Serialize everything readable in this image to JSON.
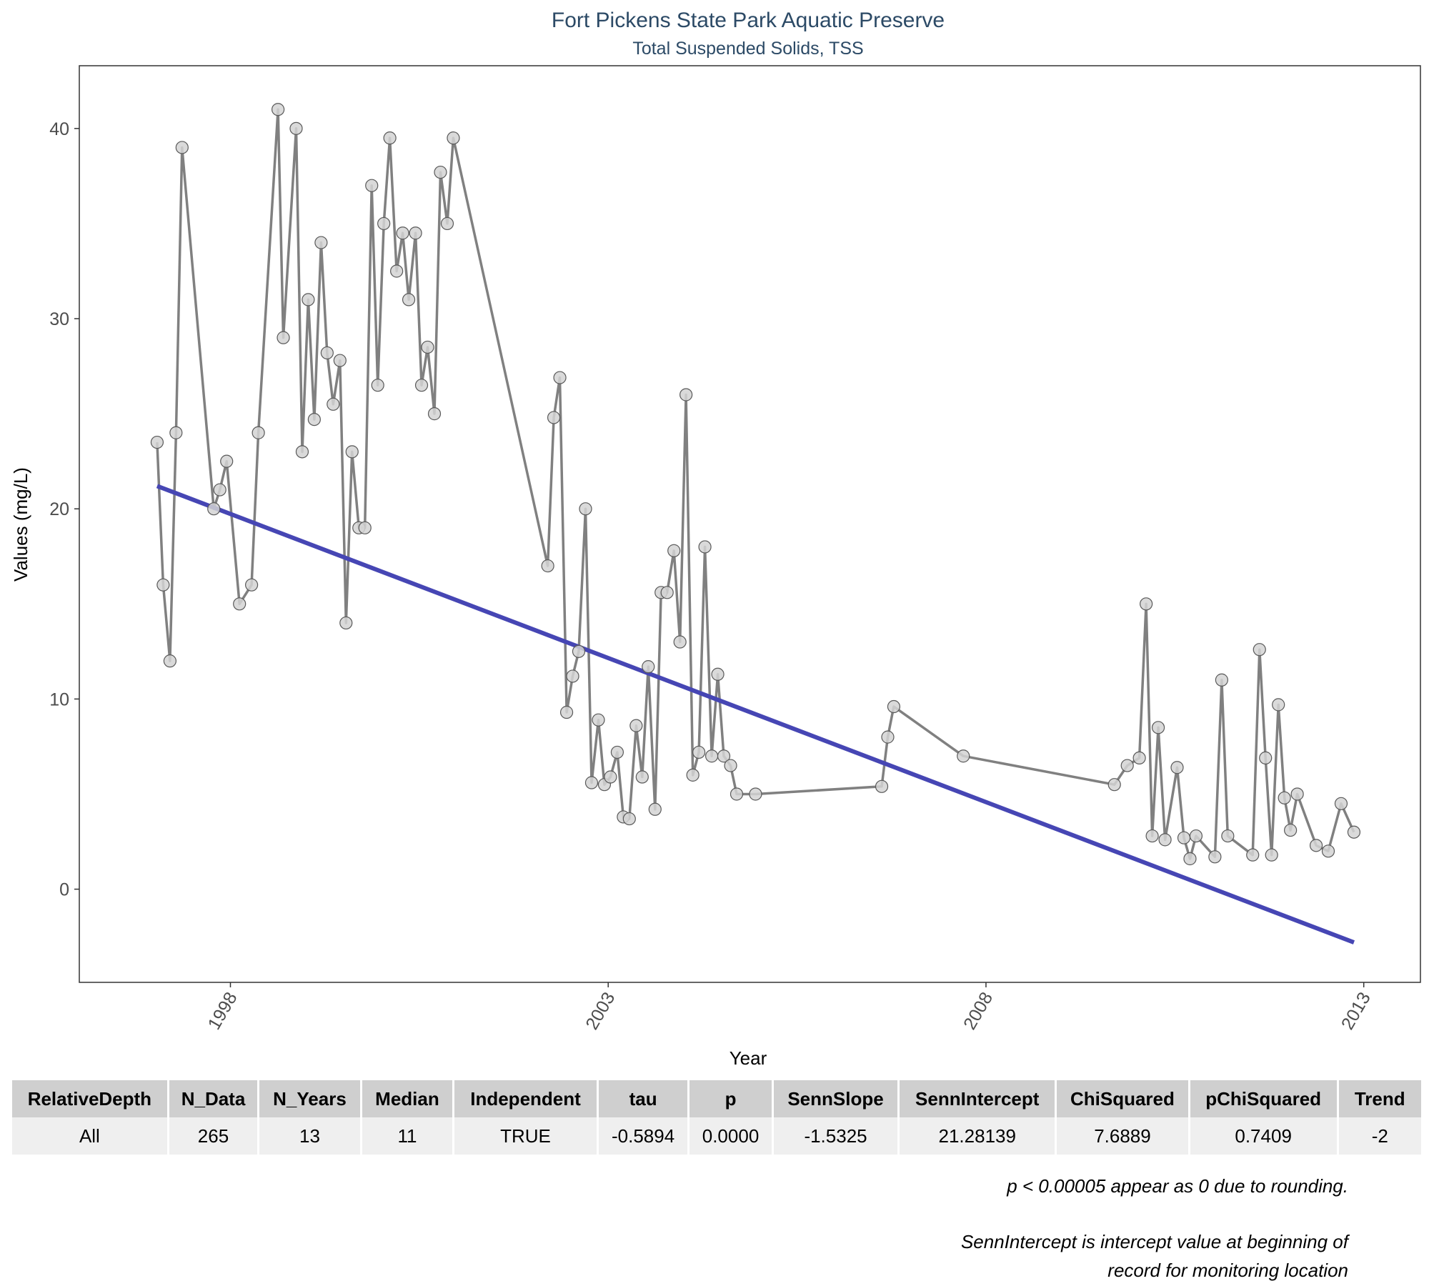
{
  "colors": {
    "title": "#2c4a66",
    "series_line": "#808080",
    "point_fill": "#d3d3d3",
    "point_stroke": "#595959",
    "trend_line": "#4646b4",
    "table_header_bg": "#cfcfcf",
    "table_row_bg": "#efefef"
  },
  "chart_data": {
    "type": "line",
    "title": "Fort Pickens State Park Aquatic Preserve",
    "subtitle": "Total Suspended Solids, TSS",
    "xlabel": "Year",
    "ylabel": "Values (mg/L)",
    "xlim": [
      1996.0,
      2013.75
    ],
    "ylim": [
      -4.9,
      43.3
    ],
    "x_ticks": [
      1998,
      2003,
      2008,
      2013
    ],
    "y_ticks": [
      0,
      10,
      20,
      30,
      40
    ],
    "grid": false,
    "x_tick_rotation": -60,
    "series": [
      {
        "style": "line+markers",
        "points": [
          [
            1997.03,
            23.5
          ],
          [
            1997.11,
            16.0
          ],
          [
            1997.2,
            12.0
          ],
          [
            1997.28,
            24.0
          ],
          [
            1997.36,
            39.0
          ],
          [
            1997.78,
            20.0
          ],
          [
            1997.86,
            21.0
          ],
          [
            1997.95,
            22.5
          ],
          [
            1998.12,
            15.0
          ],
          [
            1998.28,
            16.0
          ],
          [
            1998.37,
            24.0
          ],
          [
            1998.63,
            41.0
          ],
          [
            1998.7,
            29.0
          ],
          [
            1998.87,
            40.0
          ],
          [
            1998.95,
            23.0
          ],
          [
            1999.03,
            31.0
          ],
          [
            1999.11,
            24.7
          ],
          [
            1999.2,
            34.0
          ],
          [
            1999.28,
            28.2
          ],
          [
            1999.36,
            25.5
          ],
          [
            1999.45,
            27.8
          ],
          [
            1999.53,
            14.0
          ],
          [
            1999.61,
            23.0
          ],
          [
            1999.7,
            19.0
          ],
          [
            1999.78,
            19.0
          ],
          [
            1999.87,
            37.0
          ],
          [
            1999.95,
            26.5
          ],
          [
            2000.03,
            35.0
          ],
          [
            2000.11,
            39.5
          ],
          [
            2000.2,
            32.5
          ],
          [
            2000.28,
            34.5
          ],
          [
            2000.36,
            31.0
          ],
          [
            2000.45,
            34.5
          ],
          [
            2000.53,
            26.5
          ],
          [
            2000.61,
            28.5
          ],
          [
            2000.7,
            25.0
          ],
          [
            2000.78,
            37.7
          ],
          [
            2000.87,
            35.0
          ],
          [
            2000.95,
            39.5
          ],
          [
            2002.2,
            17.0
          ],
          [
            2002.28,
            24.8
          ],
          [
            2002.36,
            26.9
          ],
          [
            2002.45,
            9.3
          ],
          [
            2002.53,
            11.2
          ],
          [
            2002.61,
            12.5
          ],
          [
            2002.7,
            20.0
          ],
          [
            2002.78,
            5.6
          ],
          [
            2002.87,
            8.9
          ],
          [
            2002.95,
            5.5
          ],
          [
            2003.03,
            5.9
          ],
          [
            2003.12,
            7.2
          ],
          [
            2003.2,
            3.8
          ],
          [
            2003.28,
            3.7
          ],
          [
            2003.37,
            8.6
          ],
          [
            2003.45,
            5.9
          ],
          [
            2003.53,
            11.7
          ],
          [
            2003.62,
            4.2
          ],
          [
            2003.7,
            15.6
          ],
          [
            2003.78,
            15.6
          ],
          [
            2003.87,
            17.8
          ],
          [
            2003.95,
            13.0
          ],
          [
            2004.03,
            26.0
          ],
          [
            2004.12,
            6.0
          ],
          [
            2004.2,
            7.2
          ],
          [
            2004.28,
            18.0
          ],
          [
            2004.37,
            7.0
          ],
          [
            2004.45,
            11.3
          ],
          [
            2004.53,
            7.0
          ],
          [
            2004.62,
            6.5
          ],
          [
            2004.7,
            5.0
          ],
          [
            2004.95,
            5.0
          ],
          [
            2006.62,
            5.4
          ],
          [
            2006.7,
            8.0
          ],
          [
            2006.78,
            9.6
          ],
          [
            2007.7,
            7.0
          ],
          [
            2009.7,
            5.5
          ],
          [
            2009.87,
            6.5
          ],
          [
            2010.03,
            6.9
          ],
          [
            2010.12,
            15.0
          ],
          [
            2010.2,
            2.8
          ],
          [
            2010.28,
            8.5
          ],
          [
            2010.37,
            2.6
          ],
          [
            2010.53,
            6.4
          ],
          [
            2010.62,
            2.7
          ],
          [
            2010.7,
            1.6
          ],
          [
            2010.78,
            2.8
          ],
          [
            2011.03,
            1.7
          ],
          [
            2011.12,
            11.0
          ],
          [
            2011.2,
            2.8
          ],
          [
            2011.53,
            1.8
          ],
          [
            2011.62,
            12.6
          ],
          [
            2011.7,
            6.9
          ],
          [
            2011.78,
            1.8
          ],
          [
            2011.87,
            9.7
          ],
          [
            2011.95,
            4.8
          ],
          [
            2012.03,
            3.1
          ],
          [
            2012.12,
            5.0
          ],
          [
            2012.37,
            2.3
          ],
          [
            2012.53,
            2.0
          ],
          [
            2012.7,
            4.5
          ],
          [
            2012.87,
            3.0
          ]
        ]
      },
      {
        "style": "trend-line",
        "points": [
          [
            1997.03,
            21.2
          ],
          [
            2012.87,
            -2.8
          ]
        ]
      }
    ]
  },
  "table": {
    "headers": [
      "RelativeDepth",
      "N_Data",
      "N_Years",
      "Median",
      "Independent",
      "tau",
      "p",
      "SennSlope",
      "SennIntercept",
      "ChiSquared",
      "pChiSquared",
      "Trend"
    ],
    "rows": [
      [
        "All",
        "265",
        "13",
        "11",
        "TRUE",
        "-0.5894",
        "0.0000",
        "-1.5325",
        "21.28139",
        "7.6889",
        "0.7409",
        "-2"
      ]
    ]
  },
  "notes": {
    "rounding": "p < 0.00005 appear as 0 due to rounding.",
    "intercept_line1": "SennIntercept is intercept value at beginning of",
    "intercept_line2": "record for monitoring location"
  }
}
